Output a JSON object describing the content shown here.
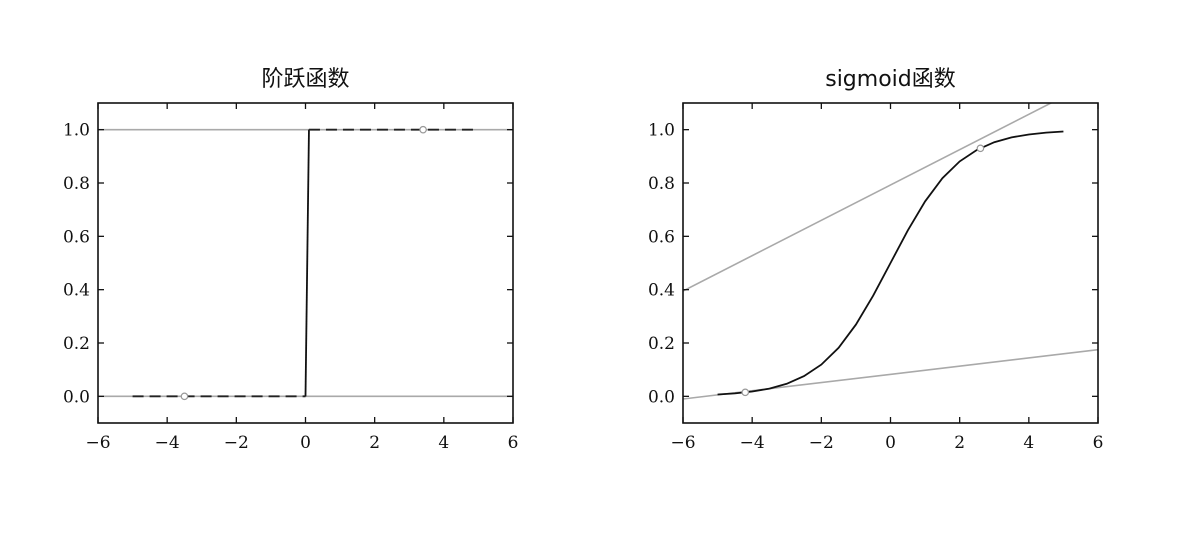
{
  "chart_data": [
    {
      "type": "line",
      "title": "阶跃函数",
      "xlim": [
        -6,
        6
      ],
      "ylim": [
        -0.1,
        1.1
      ],
      "xticks": [
        -6,
        -4,
        -2,
        0,
        2,
        4,
        6
      ],
      "xtick_labels": [
        "−6",
        "−4",
        "−2",
        "0",
        "2",
        "4",
        "6"
      ],
      "yticks": [
        0.0,
        0.2,
        0.4,
        0.6,
        0.8,
        1.0
      ],
      "ytick_labels": [
        "0.0",
        "0.2",
        "0.4",
        "0.6",
        "0.8",
        "1.0"
      ],
      "reference_lines": [
        {
          "y": 0.0,
          "color": "#a9a9a9"
        },
        {
          "y": 1.0,
          "color": "#a9a9a9"
        }
      ],
      "series": [
        {
          "style": "dashed",
          "color": "#222222",
          "x": [
            -5.0,
            0.0
          ],
          "y": [
            0.0,
            0.0
          ]
        },
        {
          "style": "solid",
          "color": "#111111",
          "x": [
            0.0,
            0.1
          ],
          "y": [
            0.0,
            1.0
          ]
        },
        {
          "style": "dashed",
          "color": "#222222",
          "x": [
            0.1,
            5.0
          ],
          "y": [
            1.0,
            1.0
          ]
        }
      ],
      "markers": [
        {
          "x": -3.5,
          "y": 0.0
        },
        {
          "x": 3.4,
          "y": 1.0
        }
      ]
    },
    {
      "type": "line",
      "title": "sigmoid函数",
      "xlim": [
        -6,
        6
      ],
      "ylim": [
        -0.1,
        1.1
      ],
      "xticks": [
        -6,
        -4,
        -2,
        0,
        2,
        4,
        6
      ],
      "xtick_labels": [
        "−6",
        "−4",
        "−2",
        "0",
        "2",
        "4",
        "6"
      ],
      "yticks": [
        0.0,
        0.2,
        0.4,
        0.6,
        0.8,
        1.0
      ],
      "ytick_labels": [
        "0.0",
        "0.2",
        "0.4",
        "0.6",
        "0.8",
        "1.0"
      ],
      "series": [
        {
          "style": "solid",
          "color": "#111111",
          "x": [
            -5,
            -4.5,
            -4,
            -3.5,
            -3,
            -2.5,
            -2,
            -1.5,
            -1,
            -0.5,
            0,
            0.5,
            1,
            1.5,
            2,
            2.5,
            3,
            3.5,
            4,
            4.5,
            5
          ],
          "y": [
            0.007,
            0.011,
            0.018,
            0.029,
            0.047,
            0.076,
            0.119,
            0.182,
            0.269,
            0.378,
            0.5,
            0.622,
            0.731,
            0.818,
            0.881,
            0.924,
            0.953,
            0.971,
            0.982,
            0.989,
            0.993
          ]
        }
      ],
      "tangent_lines": [
        {
          "color": "#a9a9a9",
          "x": [
            -6,
            6
          ],
          "y": [
            -0.01,
            0.175
          ]
        },
        {
          "color": "#a9a9a9",
          "x": [
            -6,
            6
          ],
          "y": [
            0.395,
            1.19
          ]
        }
      ],
      "markers": [
        {
          "x": -4.2,
          "y": 0.015
        },
        {
          "x": 2.6,
          "y": 0.93
        }
      ]
    }
  ]
}
